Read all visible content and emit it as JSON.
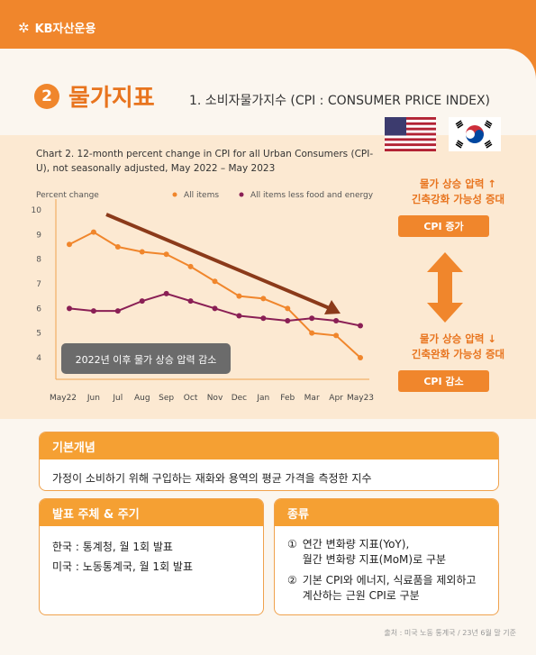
{
  "brand": {
    "logo_text": "KB자산운용"
  },
  "section": {
    "number": "2",
    "title": "물가지표",
    "subtitle": "1. 소비자물가지수 (CPI : CONSUMER PRICE INDEX)"
  },
  "chart_title": "Chart 2. 12-month percent change in CPI for all Urban Consumers (CPI-U), not seasonally adjusted, May 2022 – May 2023",
  "chart_data": {
    "type": "line",
    "ylabel": "Percent change",
    "ylim": [
      4,
      10
    ],
    "y_ticks": [
      "4",
      "5",
      "6",
      "7",
      "8",
      "9",
      "10"
    ],
    "categories": [
      "May22",
      "Jun",
      "Jul",
      "Aug",
      "Sep",
      "Oct",
      "Nov",
      "Dec",
      "Jan",
      "Feb",
      "Mar",
      "Apr",
      "May23"
    ],
    "series": [
      {
        "name": "All items",
        "color": "#f0862c",
        "values": [
          8.6,
          9.1,
          8.5,
          8.3,
          8.2,
          7.7,
          7.1,
          6.5,
          6.4,
          6.0,
          5.0,
          4.9,
          4.0
        ]
      },
      {
        "name": "All items less food and energy",
        "color": "#8a1f55",
        "values": [
          6.0,
          5.9,
          5.9,
          6.3,
          6.6,
          6.3,
          6.0,
          5.7,
          5.6,
          5.5,
          5.6,
          5.5,
          5.3
        ]
      }
    ],
    "annotation": "2022년 이후 물가 상승 압력 감소",
    "legend": "top-right",
    "grid": false
  },
  "right_panel": {
    "up_text_1": "물가 상승 압력 ↑",
    "up_text_2": "긴축강화 가능성 증대",
    "up_button": "CPI 증가",
    "down_text_1": "물가 상승 압력 ↓",
    "down_text_2": "긴축완화 가능성 증대",
    "down_button": "CPI 감소",
    "arrow_icon": "up-down-arrow-icon"
  },
  "concept": {
    "title": "기본개념",
    "body": "가정이 소비하기 위해 구입하는 재화와 용역의 평균 가격을 측정한 지수"
  },
  "publisher": {
    "title": "발표 주체 & 주기",
    "korea": "한국 : 통계청, 월 1회 발표",
    "usa": "미국 : 노동통계국, 월 1회 발표"
  },
  "types": {
    "title": "종류",
    "item1_num": "①",
    "item1_line1": "연간 변화량 지표(YoY),",
    "item1_line2": "월간 변화량 지표(MoM)로 구분",
    "item2_num": "②",
    "item2_line1": "기본 CPI와 에너지, 식료품을 제외하고",
    "item2_line2": "계산하는 근원 CPI로 구분"
  },
  "source": "출처 : 미국 노동 통계국 / 23년 6월 말 기준",
  "colors": {
    "accent": "#f0862c",
    "core_cpi": "#8a1f55",
    "arrow": "#8b3a1a"
  }
}
